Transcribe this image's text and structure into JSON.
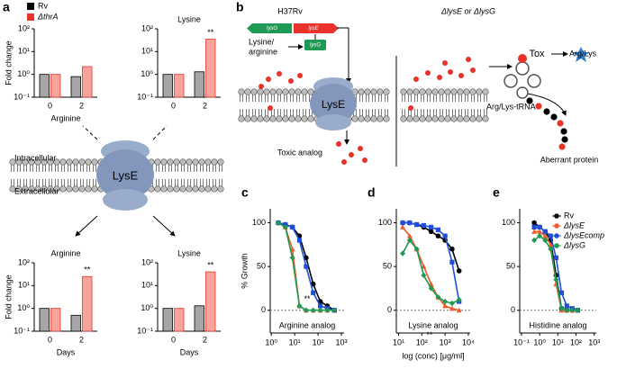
{
  "panel_labels": [
    "a",
    "b",
    "c",
    "d",
    "e"
  ],
  "diagram_a": {
    "inside": "Intracellular",
    "outside": "Extracellular",
    "protein": "LysE"
  },
  "diagram_b": {
    "strain": "H37Rv",
    "gene_left": "lysG",
    "gene_right": "lysE",
    "inducer": [
      "Lysine/",
      "arginine"
    ],
    "regulator": "lysG",
    "protein": "LysE",
    "toxic": "Toxic analog",
    "mutant": "ΔlysE or ΔlysG",
    "product": "Arg/Lys",
    "tox": "Tox",
    "trna": "Arg/Lys-tRNA",
    "aberrant": "Aberrant protein"
  },
  "chart_data": [
    {
      "type": "bar",
      "xlabel": "Arginine",
      "ylabel": "Fold change",
      "categories": [
        "0",
        "2"
      ],
      "log_y": true,
      "ylim": [
        0.1,
        100
      ],
      "yticks": [
        {
          "value": 0.1,
          "label": "10⁻¹"
        },
        {
          "value": 1,
          "label": "10⁰"
        },
        {
          "value": 10,
          "label": "10¹"
        },
        {
          "value": 100,
          "label": "10²"
        }
      ],
      "legend": "top",
      "series": [
        {
          "name": "Rv",
          "color": "#a6a6a6",
          "edge_color": "#000000",
          "values": [
            1,
            0.8
          ]
        },
        {
          "name": "ΔthrA",
          "color": "#f6a49c",
          "edge_color": "#e8322a",
          "values": [
            1,
            2.2
          ]
        }
      ]
    },
    {
      "type": "bar",
      "title": "Lysine",
      "categories": [
        "0",
        "2"
      ],
      "log_y": true,
      "ylim": [
        0.1,
        100
      ],
      "yticks": [
        {
          "value": 0.1,
          "label": "10⁻¹"
        },
        {
          "value": 1,
          "label": "10⁰"
        },
        {
          "value": 10,
          "label": "10¹"
        },
        {
          "value": 100,
          "label": "10²"
        }
      ],
      "annotation": "**",
      "series": [
        {
          "color": "#a6a6a6",
          "edge_color": "#000000",
          "values": [
            1,
            1.3
          ]
        },
        {
          "color": "#f6a49c",
          "edge_color": "#e8322a",
          "values": [
            1,
            35
          ]
        }
      ]
    },
    {
      "type": "bar",
      "title": "Arginine",
      "xlabel": "Days",
      "ylabel": "Fold change",
      "categories": [
        "0",
        "2"
      ],
      "log_y": true,
      "ylim": [
        0.1,
        100
      ],
      "yticks": [
        {
          "value": 0.1,
          "label": "10⁻¹"
        },
        {
          "value": 1,
          "label": "10⁰"
        },
        {
          "value": 10,
          "label": "10¹"
        },
        {
          "value": 100,
          "label": "10²"
        }
      ],
      "annotation": "**",
      "series": [
        {
          "color": "#a6a6a6",
          "edge_color": "#000000",
          "values": [
            1,
            0.5
          ]
        },
        {
          "color": "#f6a49c",
          "edge_color": "#e8322a",
          "values": [
            1,
            25
          ]
        }
      ]
    },
    {
      "type": "bar",
      "title": "Lysine",
      "xlabel": "Days",
      "categories": [
        "0",
        "2"
      ],
      "log_y": true,
      "ylim": [
        0.1,
        100
      ],
      "yticks": [
        {
          "value": 0.1,
          "label": "10⁻¹"
        },
        {
          "value": 1,
          "label": "10⁰"
        },
        {
          "value": 10,
          "label": "10¹"
        },
        {
          "value": 100,
          "label": "10²"
        }
      ],
      "annotation": "**",
      "series": [
        {
          "color": "#a6a6a6",
          "edge_color": "#000000",
          "values": [
            1,
            1.3
          ]
        },
        {
          "color": "#f6a49c",
          "edge_color": "#e8322a",
          "values": [
            1,
            40
          ]
        }
      ]
    },
    {
      "type": "line",
      "ylabel": "% Growth",
      "label": "Arginine analog",
      "annotation": "**",
      "log_x": true,
      "xlim": [
        0.9,
        1300
      ],
      "xticks": [
        {
          "value": 1,
          "label": "10⁰"
        },
        {
          "value": 10,
          "label": "10¹"
        },
        {
          "value": 100,
          "label": "10²"
        },
        {
          "value": 1000,
          "label": "10³"
        }
      ],
      "ylim": [
        -26,
        116
      ],
      "yticks": [
        0,
        50,
        100
      ],
      "x": [
        2,
        4,
        8,
        16,
        31,
        62,
        125,
        250,
        500
      ],
      "series": [
        {
          "color": "#000000",
          "marker": "circle",
          "values": [
            100,
            98,
            95,
            85,
            60,
            30,
            10,
            5,
            0
          ]
        },
        {
          "color": "#f05a28",
          "marker": "triangle",
          "values": [
            100,
            95,
            70,
            5,
            0,
            0,
            0,
            0,
            0
          ]
        },
        {
          "color": "#1f4fd8",
          "marker": "square",
          "values": [
            100,
            98,
            95,
            80,
            50,
            20,
            5,
            2,
            0
          ]
        },
        {
          "color": "#1f9a55",
          "marker": "diamond",
          "values": [
            100,
            95,
            60,
            5,
            0,
            0,
            0,
            0,
            0
          ]
        }
      ]
    },
    {
      "type": "line",
      "xlabel": "log (conc) [μg/ml]",
      "label": "Lysine analog",
      "annotation": "**",
      "log_x": true,
      "xlim": [
        8,
        12000
      ],
      "xticks": [
        {
          "value": 10,
          "label": "10¹"
        },
        {
          "value": 100,
          "label": "10²"
        },
        {
          "value": 1000,
          "label": "10³"
        },
        {
          "value": 10000,
          "label": "10⁴"
        }
      ],
      "ylim": [
        -26,
        116
      ],
      "yticks": [
        0,
        50,
        100
      ],
      "x": [
        15,
        30,
        60,
        120,
        250,
        500,
        1000,
        2000,
        4000
      ],
      "series": [
        {
          "color": "#000000",
          "marker": "circle",
          "values": [
            100,
            100,
            98,
            95,
            90,
            85,
            80,
            70,
            45
          ]
        },
        {
          "color": "#f05a28",
          "marker": "triangle",
          "values": [
            95,
            85,
            70,
            50,
            30,
            15,
            5,
            2,
            0
          ]
        },
        {
          "color": "#1f4fd8",
          "marker": "square",
          "values": [
            100,
            100,
            98,
            97,
            95,
            92,
            85,
            55,
            10
          ]
        },
        {
          "color": "#1f9a55",
          "marker": "diamond",
          "values": [
            65,
            80,
            70,
            40,
            25,
            15,
            10,
            8,
            12
          ]
        }
      ]
    },
    {
      "type": "line",
      "label": "Histidine analog",
      "legend": "upper right",
      "log_x": true,
      "xlim": [
        0.08,
        1300
      ],
      "xticks": [
        {
          "value": 0.1,
          "label": "10⁻¹"
        },
        {
          "value": 1,
          "label": "10⁰"
        },
        {
          "value": 10,
          "label": "10¹"
        },
        {
          "value": 100,
          "label": "10²"
        },
        {
          "value": 1000,
          "label": "10³"
        }
      ],
      "ylim": [
        -26,
        116
      ],
      "yticks": [
        0,
        50,
        100
      ],
      "x": [
        0.5,
        1,
        2,
        4,
        8,
        16,
        31,
        62,
        125
      ],
      "series": [
        {
          "name": "Rv",
          "color": "#000000",
          "marker": "circle",
          "values": [
            100,
            95,
            90,
            80,
            40,
            2,
            0,
            0,
            0
          ]
        },
        {
          "name": "ΔlysE",
          "color": "#f05a28",
          "marker": "triangle",
          "values": [
            90,
            90,
            85,
            75,
            30,
            0,
            0,
            0,
            0
          ]
        },
        {
          "name": "ΔlysEcomp",
          "color": "#1f4fd8",
          "marker": "square",
          "values": [
            95,
            95,
            90,
            85,
            60,
            20,
            5,
            2,
            0
          ]
        },
        {
          "name": "ΔlysG",
          "color": "#1f9a55",
          "marker": "diamond",
          "values": [
            80,
            85,
            80,
            70,
            35,
            2,
            0,
            0,
            0
          ]
        }
      ]
    }
  ]
}
